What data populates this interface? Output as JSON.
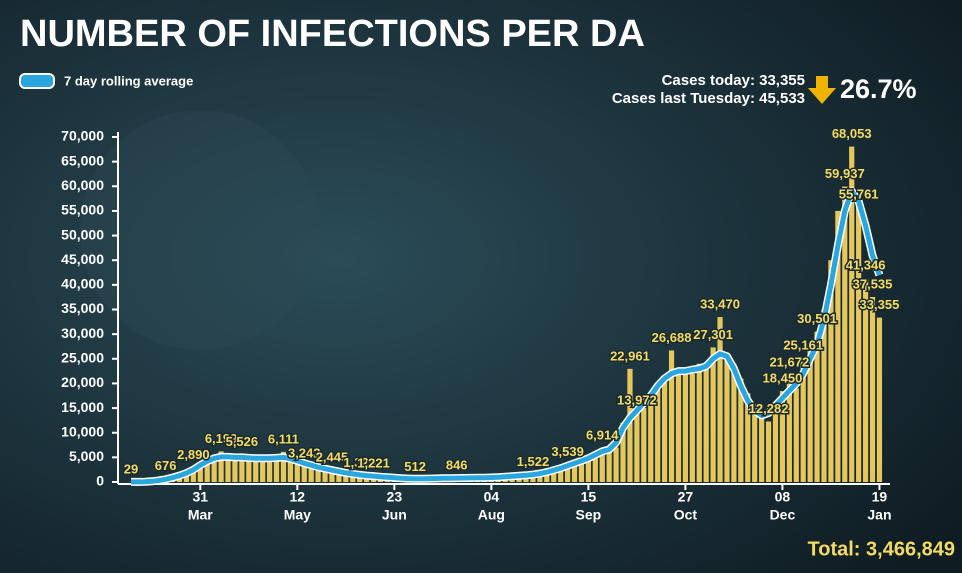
{
  "chart_data": {
    "type": "bar",
    "title": "NUMBER OF INFECTIONS PER DA",
    "annotations": {
      "cases_today": "Cases today: 33,355",
      "cases_last_tuesday": "Cases last Tuesday: 45,533",
      "change": "26.7%",
      "total": "Total: 3,466,849"
    },
    "categories": [
      null,
      null,
      null,
      null,
      null,
      null,
      null,
      null,
      null,
      null,
      "31",
      null,
      null,
      null,
      null,
      null,
      null,
      null,
      null,
      null,
      null,
      null,
      null,
      null,
      "12",
      null,
      null,
      null,
      null,
      null,
      null,
      null,
      null,
      null,
      null,
      null,
      null,
      null,
      "23",
      null,
      null,
      null,
      null,
      null,
      null,
      null,
      null,
      null,
      null,
      null,
      null,
      null,
      "04",
      null,
      null,
      null,
      null,
      null,
      null,
      null,
      null,
      null,
      null,
      null,
      null,
      null,
      "15",
      null,
      null,
      null,
      null,
      null,
      null,
      null,
      null,
      null,
      null,
      null,
      null,
      null,
      "27",
      null,
      null,
      null,
      null,
      null,
      null,
      null,
      null,
      null,
      null,
      null,
      null,
      null,
      "08",
      null,
      null,
      null,
      null,
      null,
      null,
      null,
      null,
      null,
      null,
      null,
      null,
      null,
      "19"
    ],
    "months": [
      null,
      null,
      null,
      null,
      null,
      null,
      null,
      null,
      null,
      null,
      "Mar",
      null,
      null,
      null,
      null,
      null,
      null,
      null,
      null,
      null,
      null,
      null,
      null,
      null,
      "May",
      null,
      null,
      null,
      null,
      null,
      null,
      null,
      null,
      null,
      null,
      null,
      null,
      null,
      "Jun",
      null,
      null,
      null,
      null,
      null,
      null,
      null,
      null,
      null,
      null,
      null,
      null,
      null,
      "Aug",
      null,
      null,
      null,
      null,
      null,
      null,
      null,
      null,
      null,
      null,
      null,
      null,
      null,
      "Sep",
      null,
      null,
      null,
      null,
      null,
      null,
      null,
      null,
      null,
      null,
      null,
      null,
      null,
      "Oct",
      null,
      null,
      null,
      null,
      null,
      null,
      null,
      null,
      null,
      null,
      null,
      null,
      null,
      "Dec",
      null,
      null,
      null,
      null,
      null,
      null,
      null,
      null,
      null,
      null,
      null,
      null,
      null,
      "Jan"
    ],
    "values": [
      29,
      40,
      80,
      200,
      400,
      676,
      1000,
      1500,
      2000,
      2890,
      4000,
      4500,
      5000,
      6199,
      5200,
      4800,
      5526,
      4900,
      4500,
      4700,
      5000,
      4800,
      6111,
      4500,
      4000,
      3242,
      3500,
      3000,
      2700,
      2445,
      2200,
      1900,
      1600,
      1326,
      1400,
      1221,
      1100,
      1000,
      900,
      800,
      700,
      512,
      600,
      700,
      750,
      800,
      750,
      846,
      900,
      800,
      850,
      900,
      950,
      1000,
      1100,
      1200,
      1300,
      1400,
      1522,
      1800,
      2200,
      2500,
      3000,
      3539,
      3900,
      4300,
      4800,
      5500,
      6914,
      6500,
      7000,
      12000,
      22961,
      13972,
      15000,
      17000,
      19000,
      21000,
      26688,
      22000,
      23000,
      22000,
      24000,
      23000,
      27301,
      33470,
      25000,
      24000,
      21000,
      18000,
      15000,
      13000,
      12282,
      15000,
      18450,
      21672,
      19000,
      25161,
      28000,
      30501,
      35000,
      45000,
      55000,
      59937,
      68053,
      55761,
      41346,
      37535,
      33355
    ],
    "value_labels": [
      "29",
      null,
      null,
      null,
      null,
      "676",
      null,
      null,
      null,
      "2,890",
      null,
      null,
      null,
      "6,199",
      null,
      null,
      "5,526",
      null,
      null,
      null,
      null,
      null,
      "6,111",
      null,
      null,
      "3,242",
      null,
      null,
      null,
      "2,445",
      null,
      null,
      null,
      "1,326",
      null,
      "1,221",
      null,
      null,
      null,
      null,
      null,
      "512",
      null,
      null,
      null,
      null,
      null,
      "846",
      null,
      null,
      null,
      null,
      null,
      null,
      null,
      null,
      null,
      null,
      "1,522",
      null,
      null,
      null,
      null,
      "3,539",
      null,
      null,
      null,
      null,
      "6,914",
      null,
      null,
      null,
      "22,961",
      "13,972",
      null,
      null,
      null,
      null,
      "26,688",
      null,
      null,
      null,
      null,
      null,
      "27,301",
      "33,470",
      null,
      null,
      null,
      null,
      null,
      null,
      "12,282",
      null,
      "18,450",
      "21,672",
      null,
      "25,161",
      null,
      "30,501",
      null,
      null,
      null,
      "59,937",
      "68,053",
      "55,761",
      "41,346",
      "37,535",
      "33,355"
    ],
    "color": "#e6c75c",
    "series": [
      {
        "name": "7 day rolling average",
        "color": "#2aa6df",
        "values": [
          20,
          30,
          60,
          150,
          300,
          550,
          900,
          1300,
          1800,
          2500,
          3400,
          4200,
          4800,
          5100,
          5100,
          5000,
          5000,
          4900,
          4800,
          4800,
          4800,
          4900,
          5000,
          4700,
          4300,
          3800,
          3400,
          3000,
          2700,
          2400,
          2100,
          1850,
          1650,
          1450,
          1300,
          1200,
          1050,
          950,
          850,
          750,
          700,
          650,
          650,
          700,
          720,
          750,
          780,
          800,
          820,
          830,
          850,
          880,
          920,
          980,
          1050,
          1150,
          1250,
          1350,
          1500,
          1700,
          2000,
          2400,
          2800,
          3300,
          3800,
          4300,
          4800,
          5500,
          6200,
          6600,
          8000,
          11000,
          13000,
          14500,
          16000,
          17500,
          19500,
          21000,
          22000,
          22500,
          22500,
          22800,
          23000,
          23500,
          25000,
          26000,
          25500,
          23000,
          19500,
          16500,
          14500,
          13500,
          14000,
          15500,
          17000,
          18500,
          20000,
          22000,
          25000,
          28000,
          33000,
          40000,
          48000,
          55000,
          59000,
          57000,
          52000,
          46000,
          42000
        ]
      }
    ],
    "ylim": [
      0,
      70000
    ],
    "yticks": [
      0,
      {
        "value": 5000,
        "label": "5,000"
      },
      {
        "value": 10000,
        "label": "10,000"
      },
      {
        "value": 15000,
        "label": "15,000"
      },
      {
        "value": 20000,
        "label": "20,000"
      },
      {
        "value": 25000,
        "label": "25,000"
      },
      {
        "value": 30000,
        "label": "30,000"
      },
      {
        "value": 35000,
        "label": "35,000"
      },
      {
        "value": 40000,
        "label": "40,000"
      },
      {
        "value": 45000,
        "label": "45,000"
      },
      {
        "value": 50000,
        "label": "50,000"
      },
      {
        "value": 55000,
        "label": "55,000"
      },
      {
        "value": 60000,
        "label": "60,000"
      },
      {
        "value": 65000,
        "label": "65,000"
      },
      {
        "value": 70000,
        "label": "70,000"
      }
    ],
    "grid": false,
    "legend": "top-left"
  }
}
